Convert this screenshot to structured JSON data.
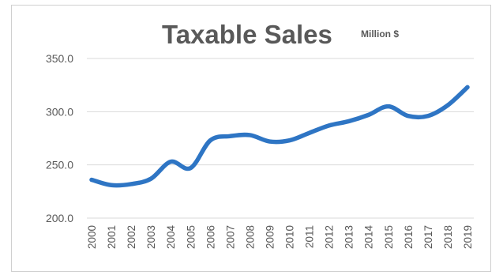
{
  "chart_data": {
    "type": "line",
    "title": "Taxable Sales",
    "subtitle": "Million $",
    "xlabel": "",
    "ylabel": "",
    "ylim": [
      200,
      350
    ],
    "yticks": [
      "350.0",
      "300.0",
      "250.0",
      "200.0"
    ],
    "ytick_values": [
      350,
      300,
      250,
      200
    ],
    "categories": [
      "2000",
      "2001",
      "2002",
      "2003",
      "2004",
      "2005",
      "2006",
      "2007",
      "2008",
      "2009",
      "2010",
      "2011",
      "2012",
      "2013",
      "2014",
      "2015",
      "2016",
      "2017",
      "2018",
      "2019"
    ],
    "series": [
      {
        "values": [
          236,
          231,
          232,
          237,
          253,
          247,
          273,
          277,
          278,
          272,
          273,
          280,
          287,
          291,
          297,
          305,
          296,
          296,
          306,
          323
        ],
        "color": "#2e75c4"
      }
    ],
    "grid": true,
    "legend": "none"
  }
}
